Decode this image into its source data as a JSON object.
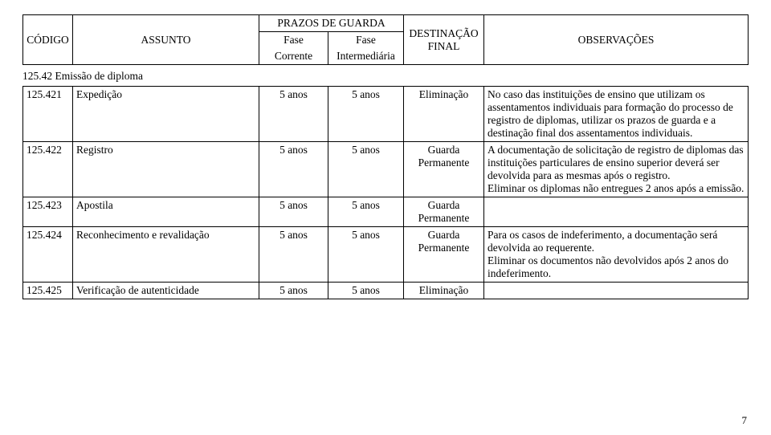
{
  "header": {
    "codigo": "CÓDIGO",
    "assunto": "ASSUNTO",
    "prazos": "PRAZOS DE GUARDA",
    "fase_corrente_l1": "Fase",
    "fase_corrente_l2": "Corrente",
    "fase_inter_l1": "Fase",
    "fase_inter_l2": "Intermediária",
    "destinacao_l1": "DESTINAÇÃO",
    "destinacao_l2": "FINAL",
    "observacoes": "OBSERVAÇÕES"
  },
  "section_title": "125.42 Emissão de diploma",
  "rows": [
    {
      "codigo": "125.421",
      "assunto": "Expedição",
      "fase_corrente": "5 anos",
      "fase_inter": "5 anos",
      "destinacao": "Eliminação",
      "obs": "No caso das instituições de ensino que utilizam os assentamentos individuais para formação do processo de registro de diplomas, utilizar os prazos de guarda e a destinação final dos assentamentos individuais."
    },
    {
      "codigo": "125.422",
      "assunto": "Registro",
      "fase_corrente": "5 anos",
      "fase_inter": "5 anos",
      "destinacao": "Guarda\nPermanente",
      "obs": "A documentação de solicitação de registro de diplomas das instituições particulares de ensino superior deverá ser devolvida para as mesmas após o registro.\nEliminar os diplomas não entregues 2 anos após a emissão."
    },
    {
      "codigo": "125.423",
      "assunto": "Apostila",
      "fase_corrente": "5 anos",
      "fase_inter": "5 anos",
      "destinacao": "Guarda\nPermanente",
      "obs": ""
    },
    {
      "codigo": "125.424",
      "assunto": "Reconhecimento e revalidação",
      "fase_corrente": "5 anos",
      "fase_inter": "5 anos",
      "destinacao": "Guarda\nPermanente",
      "obs": "Para os casos de indeferimento, a documentação será devolvida ao requerente.\nEliminar os documentos não devolvidos após 2 anos do indeferimento."
    },
    {
      "codigo": "125.425",
      "assunto": "Verificação de autenticidade",
      "fase_corrente": "5 anos",
      "fase_inter": "5 anos",
      "destinacao": "Eliminação",
      "obs": ""
    }
  ],
  "page_number": "7",
  "col_widths": [
    "62px",
    "232px",
    "86px",
    "94px",
    "100px",
    "auto"
  ]
}
